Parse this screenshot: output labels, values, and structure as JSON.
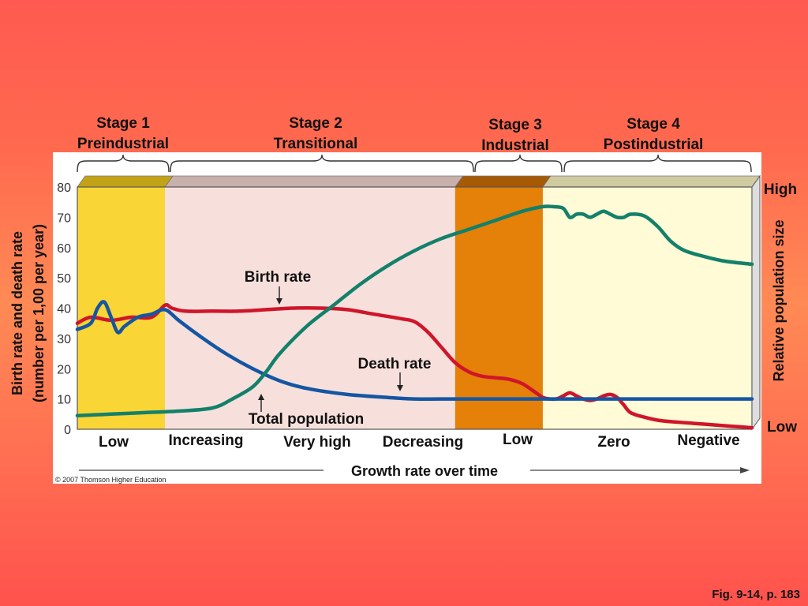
{
  "colors": {
    "stage1": "#f9d535",
    "stage2": "#f7e0dc",
    "stage3": "#e58008",
    "stage4": "#fefbd6",
    "birth_rate": "#d0152b",
    "death_rate": "#1556a3",
    "total_population": "#13806a"
  },
  "stages": [
    {
      "title": "Stage 1",
      "subtitle": "Preindustrial",
      "growth": "Low"
    },
    {
      "title": "Stage 2",
      "subtitle": "Transitional",
      "growth_labels": [
        "Increasing",
        "Very high",
        "Decreasing"
      ]
    },
    {
      "title": "Stage 3",
      "subtitle": "Industrial",
      "growth": "Low"
    },
    {
      "title": "Stage 4",
      "subtitle": "Postindustrial",
      "growth_labels": [
        "Zero",
        "Negative"
      ]
    }
  ],
  "annotations": {
    "birth_rate": "Birth rate",
    "death_rate": "Death rate",
    "total_population": "Total population"
  },
  "credit": "© 2007 Thomson Higher Education",
  "caption": "Fig. 9-14, p. 183",
  "chart_data": {
    "type": "line",
    "title": "",
    "xlabel": "Growth rate over time",
    "ylabel": "Birth rate and death rate (number per 1,00 per year)",
    "ylabel_lines": [
      "Birth rate and death rate",
      "(number per 1,00 per year)"
    ],
    "y2label": "Relative population size",
    "y2_ticks": {
      "top": "High",
      "bottom": "Low"
    },
    "ylim": [
      0,
      80
    ],
    "yticks": [
      0,
      10,
      20,
      30,
      40,
      50,
      60,
      70,
      80
    ],
    "xlim": [
      0,
      100
    ],
    "stage_bounds": [
      0,
      13,
      56,
      69,
      100
    ],
    "grid": false,
    "series": [
      {
        "name": "Birth rate",
        "x": [
          0,
          2,
          5,
          8,
          11,
          13,
          14,
          16,
          20,
          24,
          28,
          32,
          36,
          40,
          44,
          48,
          50,
          52,
          54,
          56,
          58,
          60,
          62,
          64,
          66,
          68,
          69,
          70,
          71,
          72,
          73,
          74,
          75,
          76,
          77,
          78,
          79,
          80,
          81,
          82,
          84,
          86,
          88,
          91,
          94,
          97,
          100
        ],
        "y": [
          35,
          37,
          36,
          37,
          37,
          41,
          40,
          39,
          39,
          39,
          39.5,
          40,
          40,
          39.5,
          38,
          36.5,
          35.5,
          32,
          27,
          22,
          19,
          17.5,
          17,
          16.5,
          15,
          12,
          10.5,
          10,
          10,
          11,
          12,
          11,
          10,
          9.5,
          10,
          11,
          11.5,
          10.5,
          8,
          5.5,
          4,
          3,
          2.5,
          2,
          1.5,
          1,
          0.5
        ]
      },
      {
        "name": "Death rate",
        "x": [
          0,
          2,
          3,
          4,
          5,
          6,
          7,
          9,
          11,
          13,
          15,
          18,
          22,
          26,
          30,
          34,
          40,
          46,
          50,
          56,
          60,
          70,
          80,
          90,
          100
        ],
        "y": [
          33,
          35,
          40,
          42,
          37,
          32,
          34,
          37,
          38,
          39.5,
          36,
          31,
          25,
          20,
          16,
          13.5,
          11.5,
          10.5,
          10,
          10,
          10,
          10,
          10,
          10,
          10
        ]
      },
      {
        "name": "Total population",
        "x": [
          0,
          5,
          10,
          15,
          20,
          23,
          26,
          28,
          30,
          34,
          38,
          42,
          46,
          50,
          54,
          58,
          62,
          66,
          69,
          70.5,
          72,
          73,
          74,
          75,
          76,
          77,
          78,
          79,
          80,
          81,
          82,
          84,
          86,
          88,
          90,
          93,
          96,
          100
        ],
        "y": [
          4.5,
          5,
          5.5,
          6,
          7,
          10,
          14,
          19,
          25,
          34,
          41,
          48,
          54,
          59,
          63,
          66,
          69,
          72,
          73.5,
          73.5,
          73,
          70,
          71,
          71,
          70,
          71,
          72,
          71,
          70,
          70,
          71,
          70.5,
          67,
          62,
          59,
          57,
          55.5,
          54.5
        ]
      }
    ]
  }
}
